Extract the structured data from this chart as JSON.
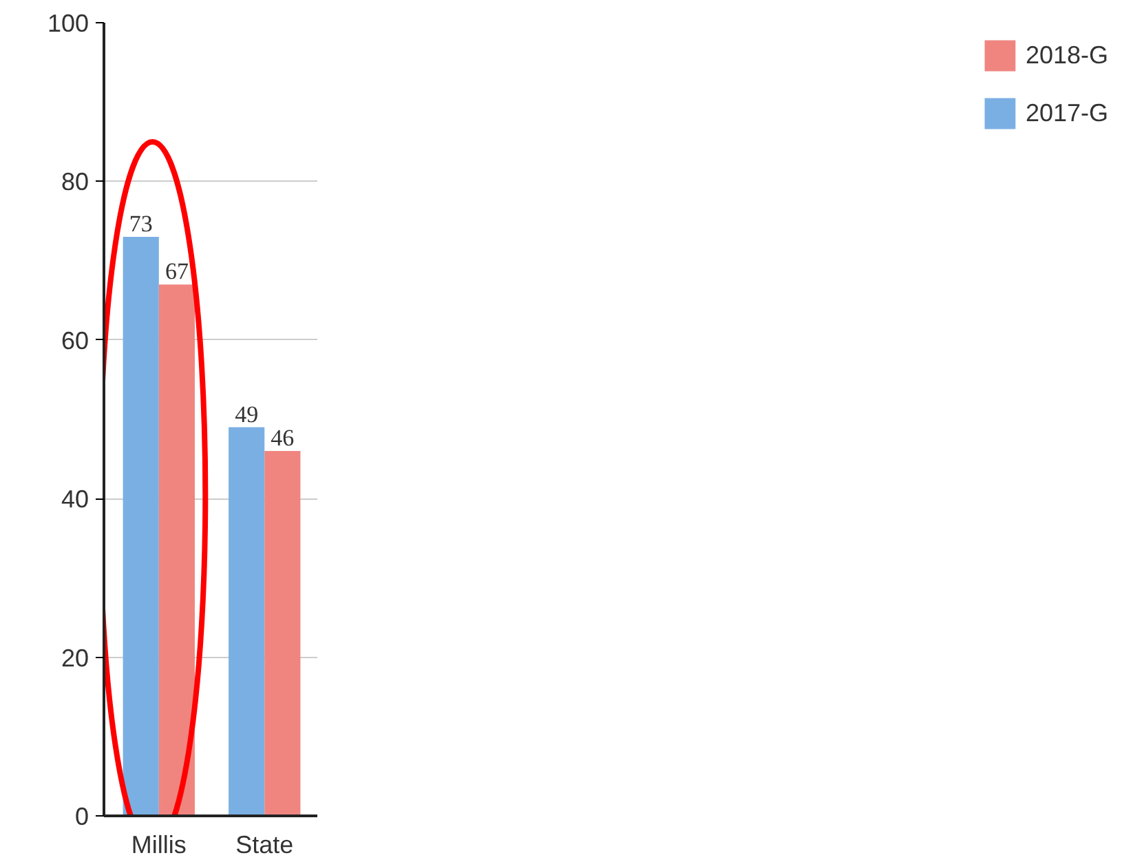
{
  "chart_data": {
    "type": "bar",
    "categories": [
      "Millis",
      "State"
    ],
    "series": [
      {
        "name": "2017-G",
        "color": "#7aafe3",
        "values": [
          73,
          49
        ]
      },
      {
        "name": "2018-G",
        "color": "#f08580",
        "values": [
          67,
          46
        ]
      }
    ],
    "ylim": [
      0,
      100
    ],
    "yticks": [
      0,
      20,
      40,
      60,
      80,
      100
    ],
    "grid": "y",
    "legend": "right",
    "data_labels": true
  }
}
